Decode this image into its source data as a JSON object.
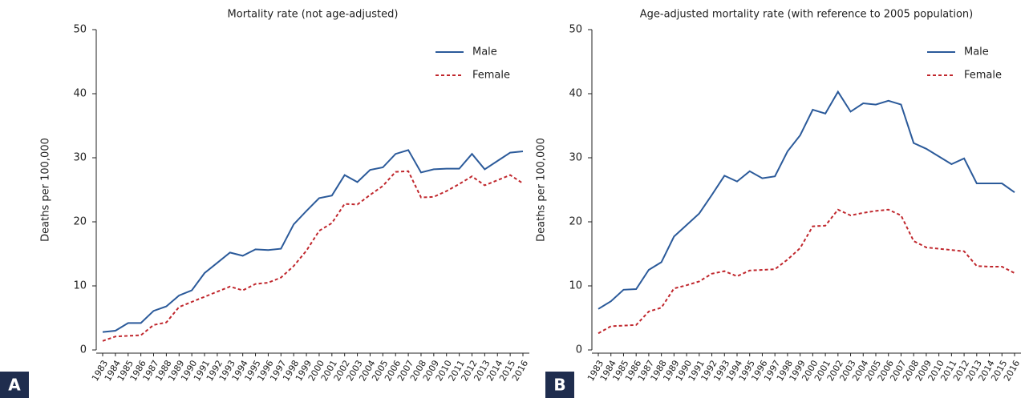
{
  "chart_data": [
    {
      "type": "line",
      "panel_label": "A",
      "title": "Mortality rate (not age-adjusted)",
      "y_label": "Deaths per 100,000",
      "categories": [
        "1983",
        "1984",
        "1985",
        "1986",
        "1987",
        "1988",
        "1989",
        "1990",
        "1991",
        "1992",
        "1993",
        "1994",
        "1995",
        "1996",
        "1997",
        "1998",
        "1999",
        "2000",
        "2001",
        "2002",
        "2003",
        "2004",
        "2005",
        "2006",
        "2007",
        "2008",
        "2009",
        "2010",
        "2011",
        "2012",
        "2013",
        "2014",
        "2015",
        "2016"
      ],
      "ylim": [
        0,
        50
      ],
      "yticks": [
        0,
        10,
        20,
        30,
        40,
        50
      ],
      "legend": "upper right",
      "series": [
        {
          "name": "Male",
          "color": "#2b5a9a",
          "dash": false,
          "values": [
            2.8,
            3.0,
            4.2,
            4.2,
            6.1,
            6.8,
            8.5,
            9.3,
            12.0,
            13.6,
            15.2,
            14.7,
            15.7,
            15.6,
            15.8,
            19.6,
            21.7,
            23.7,
            24.1,
            27.3,
            26.2,
            28.1,
            28.5,
            30.6,
            31.2,
            27.7,
            28.2,
            28.3,
            28.3,
            30.6,
            28.2,
            29.5,
            30.8,
            31.0
          ]
        },
        {
          "name": "Female",
          "color": "#c0272d",
          "dash": true,
          "values": [
            1.4,
            2.1,
            2.2,
            2.3,
            3.9,
            4.3,
            6.7,
            7.5,
            8.3,
            9.1,
            9.9,
            9.3,
            10.3,
            10.5,
            11.3,
            13.1,
            15.5,
            18.6,
            19.8,
            22.8,
            22.7,
            24.2,
            25.6,
            27.8,
            27.9,
            23.8,
            23.9,
            24.8,
            25.9,
            27.1,
            25.7,
            26.5,
            27.3,
            26.0
          ]
        }
      ]
    },
    {
      "type": "line",
      "panel_label": "B",
      "title": "Age-adjusted mortality rate (with reference to 2005 population)",
      "y_label": "Deaths per 100,000",
      "categories": [
        "1983",
        "1984",
        "1985",
        "1986",
        "1987",
        "1988",
        "1989",
        "1990",
        "1991",
        "1992",
        "1993",
        "1994",
        "1995",
        "1996",
        "1997",
        "1998",
        "1999",
        "2000",
        "2001",
        "2002",
        "2003",
        "2004",
        "2005",
        "2006",
        "2007",
        "2008",
        "2009",
        "2010",
        "2011",
        "2012",
        "2013",
        "2014",
        "2015",
        "2016"
      ],
      "ylim": [
        0,
        50
      ],
      "yticks": [
        0,
        10,
        20,
        30,
        40,
        50
      ],
      "legend": "upper right",
      "series": [
        {
          "name": "Male",
          "color": "#2b5a9a",
          "dash": false,
          "values": [
            6.4,
            7.6,
            9.4,
            9.5,
            12.5,
            13.7,
            17.7,
            19.5,
            21.3,
            24.2,
            27.2,
            26.3,
            27.9,
            26.8,
            27.1,
            31.0,
            33.5,
            37.5,
            36.9,
            40.3,
            37.2,
            38.5,
            38.3,
            38.9,
            38.3,
            32.3,
            31.4,
            30.2,
            29.0,
            29.9,
            26.0,
            26.0,
            26.0,
            24.6
          ]
        },
        {
          "name": "Female",
          "color": "#c0272d",
          "dash": true,
          "values": [
            2.6,
            3.7,
            3.8,
            3.9,
            6.0,
            6.6,
            9.6,
            10.1,
            10.7,
            11.9,
            12.3,
            11.5,
            12.4,
            12.5,
            12.6,
            14.1,
            15.9,
            19.3,
            19.4,
            21.9,
            21.0,
            21.4,
            21.7,
            21.9,
            21.0,
            17.0,
            16.0,
            15.8,
            15.6,
            15.4,
            13.1,
            13.0,
            13.0,
            12.0
          ]
        }
      ]
    }
  ]
}
